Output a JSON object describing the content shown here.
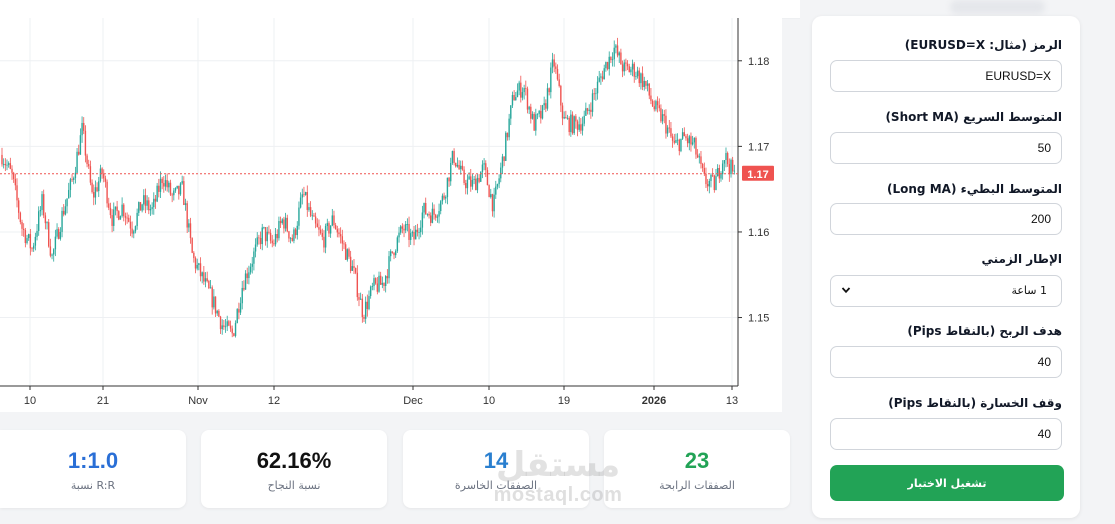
{
  "chart_data": {
    "type": "candlestick",
    "ylim": [
      1.142,
      1.185
    ],
    "y_ticks": [
      "1.18",
      "1.17",
      "1.16",
      "1.15"
    ],
    "y_tick_values": [
      1.18,
      1.17,
      1.16,
      1.15
    ],
    "x_ticks": [
      "10",
      "21",
      "Nov",
      "12",
      "Dec",
      "10",
      "19",
      "2026",
      "13"
    ],
    "last_price": 1.1668,
    "last_price_label": "1.17",
    "grid": true,
    "price_path": [
      1.169,
      1.1665,
      1.1605,
      1.158,
      1.1635,
      1.157,
      1.162,
      1.166,
      1.172,
      1.164,
      1.167,
      1.1615,
      1.163,
      1.1605,
      1.1635,
      1.1625,
      1.1665,
      1.164,
      1.165,
      1.157,
      1.1545,
      1.152,
      1.149,
      1.148,
      1.154,
      1.157,
      1.16,
      1.1585,
      1.1615,
      1.159,
      1.1645,
      1.161,
      1.159,
      1.1615,
      1.1585,
      1.1555,
      1.1505,
      1.1535,
      1.154,
      1.158,
      1.1605,
      1.159,
      1.1625,
      1.162,
      1.164,
      1.169,
      1.166,
      1.1655,
      1.1675,
      1.163,
      1.169,
      1.176,
      1.177,
      1.1725,
      1.174,
      1.18,
      1.173,
      1.1725,
      1.173,
      1.176,
      1.179,
      1.1815,
      1.179,
      1.179,
      1.1775,
      1.1745,
      1.173,
      1.17,
      1.171,
      1.17,
      1.166,
      1.1655,
      1.169,
      1.1665
    ],
    "candle_count": 440
  },
  "stats": [
    {
      "value": "23",
      "label": "الصفقات الرابحة",
      "color": "#22a356"
    },
    {
      "value": "14",
      "label": "الصفقات الخاسرة",
      "color": "#2a7fcf"
    },
    {
      "value": "62.16%",
      "label": "نسبة النجاح",
      "color": "#111111"
    },
    {
      "value": "1:1.0",
      "label": "نسبة R:R",
      "color": "#2a6fd6"
    }
  ],
  "watermark": {
    "arabic": "مستقل",
    "latin": "mostaql.com"
  },
  "form": {
    "symbol_label": "الرمز (مثال: EURUSD=X)",
    "symbol_value": "EURUSD=X",
    "short_ma_label": "المتوسط السريع (Short MA)",
    "short_ma_value": "50",
    "long_ma_label": "المتوسط البطيء (Long MA)",
    "long_ma_value": "200",
    "timeframe_label": "الإطار الزمني",
    "timeframe_value": "1 ساعة",
    "tp_label": "هدف الربح (بالنقاط Pips)",
    "tp_value": "40",
    "sl_label": "وقف الخسارة (بالنقاط Pips)",
    "sl_value": "40",
    "run_button": "تشغيل الاختبار"
  },
  "colors": {
    "up": "#26a69a",
    "down": "#ef5350",
    "price_line": "#ef5350",
    "button": "#22a356"
  }
}
